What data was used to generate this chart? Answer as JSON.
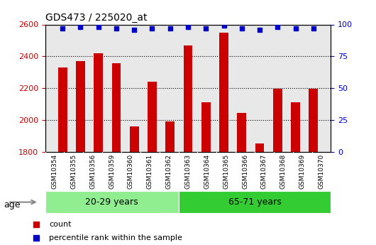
{
  "title": "GDS473 / 225020_at",
  "samples": [
    "GSM10354",
    "GSM10355",
    "GSM10356",
    "GSM10359",
    "GSM10360",
    "GSM10361",
    "GSM10362",
    "GSM10363",
    "GSM10364",
    "GSM10365",
    "GSM10366",
    "GSM10367",
    "GSM10368",
    "GSM10369",
    "GSM10370"
  ],
  "counts": [
    2330,
    2370,
    2420,
    2355,
    1960,
    2240,
    1990,
    2470,
    2110,
    2550,
    2045,
    1855,
    2195,
    2110,
    2195
  ],
  "percentile_ranks": [
    97,
    98,
    98,
    97,
    96,
    97,
    97,
    98,
    97,
    99,
    97,
    96,
    98,
    97,
    97
  ],
  "groups": [
    {
      "label": "20-29 years",
      "color": "#90EE90",
      "start": 0,
      "end": 6
    },
    {
      "label": "65-71 years",
      "color": "#33CC33",
      "start": 7,
      "end": 14
    }
  ],
  "age_label": "age",
  "ylim": [
    1800,
    2600
  ],
  "yticks": [
    1800,
    2000,
    2200,
    2400,
    2600
  ],
  "right_yticks": [
    0,
    25,
    50,
    75,
    100
  ],
  "right_ylim": [
    0,
    100
  ],
  "bar_color": "#CC0000",
  "dot_color": "#0000CC",
  "legend_count_label": "count",
  "legend_pct_label": "percentile rank within the sample",
  "bg_color": "#FFFFFF",
  "plot_bg_color": "#E8E8E8",
  "tick_bg_color": "#C8C8C8",
  "xlabel_color": "#CC0000",
  "right_axis_color": "#0000CC",
  "grid_color": "#000000",
  "group_divider": 6.5
}
